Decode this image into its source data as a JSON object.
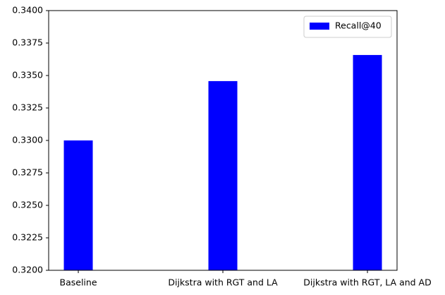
{
  "chart_data": {
    "type": "bar",
    "categories": [
      "Baseline",
      "Dijkstra with RGT and LA",
      "Dijkstra with RGT, LA and AD"
    ],
    "series": [
      {
        "name": "Recall@40",
        "color": "#0000ff",
        "values": [
          0.33,
          0.33457,
          0.33658
        ]
      }
    ],
    "ylim": [
      0.32,
      0.34
    ],
    "yticks": [
      {
        "value": 0.32,
        "label": "0.3200"
      },
      {
        "value": 0.3225,
        "label": "0.3225"
      },
      {
        "value": 0.325,
        "label": "0.3250"
      },
      {
        "value": 0.3275,
        "label": "0.3275"
      },
      {
        "value": 0.33,
        "label": "0.3300"
      },
      {
        "value": 0.3325,
        "label": "0.3325"
      },
      {
        "value": 0.335,
        "label": "0.3350"
      },
      {
        "value": 0.3375,
        "label": "0.3375"
      },
      {
        "value": 0.34,
        "label": "0.3400"
      }
    ],
    "grid": false,
    "legend": "upper right"
  }
}
